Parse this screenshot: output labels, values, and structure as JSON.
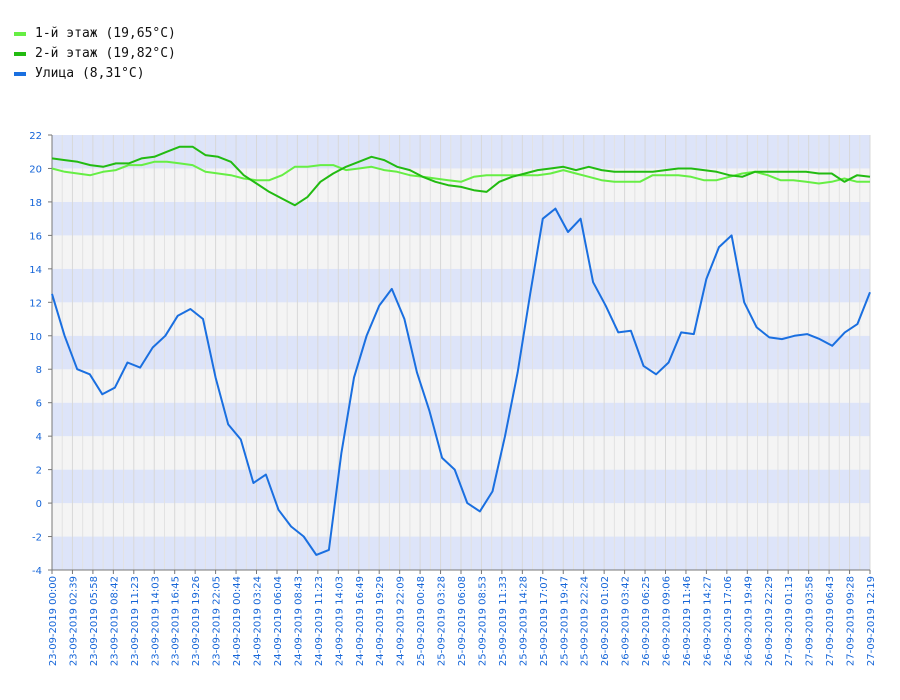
{
  "legend": [
    {
      "label": "1-й этаж (19,65°C)",
      "color": "#66ee44"
    },
    {
      "label": "2-й этаж (19,82°C)",
      "color": "#22bb11"
    },
    {
      "label": "Улица (8,31°C)",
      "color": "#1a6fe0"
    }
  ],
  "chart_data": {
    "type": "line",
    "ylim": [
      -4,
      22
    ],
    "yticks": [
      -4,
      -2,
      0,
      2,
      4,
      6,
      8,
      10,
      12,
      14,
      16,
      18,
      20,
      22
    ],
    "grid": true,
    "legend_position": "top-left",
    "x_tick_labels": [
      "23-09-2019 00:00",
      "23-09-2019 02:39",
      "23-09-2019 05:58",
      "23-09-2019 08:42",
      "23-09-2019 11:23",
      "23-09-2019 14:03",
      "23-09-2019 16:45",
      "23-09-2019 19:26",
      "23-09-2019 22:05",
      "24-09-2019 00:44",
      "24-09-2019 03:24",
      "24-09-2019 06:04",
      "24-09-2019 08:43",
      "24-09-2019 11:23",
      "24-09-2019 14:03",
      "24-09-2019 16:49",
      "24-09-2019 19:29",
      "24-09-2019 22:09",
      "25-09-2019 00:48",
      "25-09-2019 03:28",
      "25-09-2019 06:08",
      "25-09-2019 08:53",
      "25-09-2019 11:33",
      "25-09-2019 14:28",
      "25-09-2019 17:07",
      "25-09-2019 19:47",
      "25-09-2019 22:24",
      "26-09-2019 01:02",
      "26-09-2019 03:42",
      "26-09-2019 06:25",
      "26-09-2019 09:06",
      "26-09-2019 11:46",
      "26-09-2019 14:27",
      "26-09-2019 17:06",
      "26-09-2019 19:49",
      "26-09-2019 22:29",
      "27-09-2019 01:13",
      "27-09-2019 03:58",
      "27-09-2019 06:43",
      "27-09-2019 09:28",
      "27-09-2019 12:19"
    ],
    "series": [
      {
        "name": "1-й этаж (19,65°C)",
        "color": "#66ee44",
        "values": [
          20.0,
          19.8,
          19.7,
          19.6,
          19.8,
          19.9,
          20.2,
          20.2,
          20.4,
          20.4,
          20.3,
          20.2,
          19.8,
          19.7,
          19.6,
          19.4,
          19.3,
          19.3,
          19.6,
          20.1,
          20.1,
          20.2,
          20.2,
          19.9,
          20.0,
          20.1,
          19.9,
          19.8,
          19.6,
          19.5,
          19.4,
          19.3,
          19.2,
          19.5,
          19.6,
          19.6,
          19.6,
          19.6,
          19.6,
          19.7,
          19.9,
          19.7,
          19.5,
          19.3,
          19.2,
          19.2,
          19.2,
          19.6,
          19.6,
          19.6,
          19.5,
          19.3,
          19.3,
          19.5,
          19.7,
          19.8,
          19.6,
          19.3,
          19.3,
          19.2,
          19.1,
          19.2,
          19.4,
          19.2,
          19.2
        ]
      },
      {
        "name": "2-й этаж (19,82°C)",
        "color": "#22bb11",
        "values": [
          20.6,
          20.5,
          20.4,
          20.2,
          20.1,
          20.3,
          20.3,
          20.6,
          20.7,
          21.0,
          21.3,
          21.3,
          20.8,
          20.7,
          20.4,
          19.6,
          19.1,
          18.6,
          18.2,
          17.8,
          18.3,
          19.2,
          19.7,
          20.1,
          20.4,
          20.7,
          20.5,
          20.1,
          19.9,
          19.5,
          19.2,
          19.0,
          18.9,
          18.7,
          18.6,
          19.2,
          19.5,
          19.7,
          19.9,
          20.0,
          20.1,
          19.9,
          20.1,
          19.9,
          19.8,
          19.8,
          19.8,
          19.8,
          19.9,
          20.0,
          20.0,
          19.9,
          19.8,
          19.6,
          19.5,
          19.8,
          19.8,
          19.8,
          19.8,
          19.8,
          19.7,
          19.7,
          19.2,
          19.6,
          19.5
        ]
      },
      {
        "name": "Улица (8,31°C)",
        "color": "#1a6fe0",
        "values": [
          12.5,
          10.0,
          8.0,
          7.7,
          6.5,
          6.9,
          8.4,
          8.1,
          9.3,
          10.0,
          11.2,
          11.6,
          11.0,
          7.5,
          4.7,
          3.8,
          1.2,
          1.7,
          -0.4,
          -1.4,
          -2.0,
          -3.1,
          -2.8,
          3.0,
          7.5,
          10.0,
          11.8,
          12.8,
          11.0,
          7.8,
          5.5,
          2.7,
          2.0,
          0.0,
          -0.5,
          0.7,
          4.0,
          7.8,
          12.5,
          17.0,
          17.6,
          16.2,
          17.0,
          13.2,
          11.8,
          10.2,
          10.3,
          8.2,
          7.7,
          8.4,
          10.2,
          10.1,
          13.4,
          15.3,
          16.0,
          12.0,
          10.5,
          9.9,
          9.8,
          10.0,
          10.1,
          9.8,
          9.4,
          10.2,
          10.7,
          12.6
        ]
      }
    ]
  }
}
